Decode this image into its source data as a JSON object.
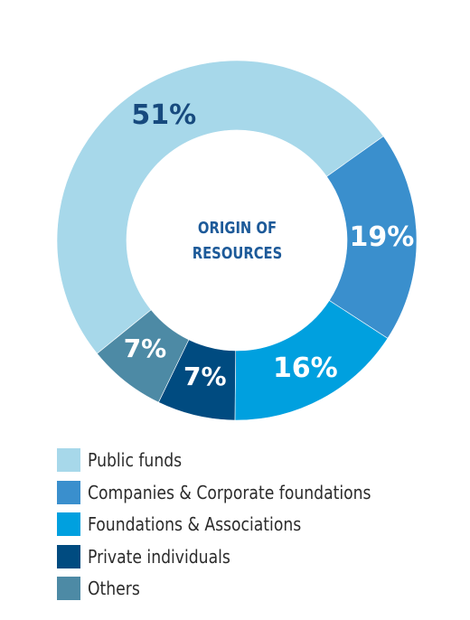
{
  "chart_data": {
    "type": "pie",
    "title": [
      "ORIGIN OF",
      "RESOURCES"
    ],
    "categories": [
      "Public funds",
      "Companies & Corporate foundations",
      "Foundations & Associations",
      "Private individuals",
      "Others"
    ],
    "values": [
      51,
      19,
      16,
      7,
      7
    ],
    "value_labels": [
      "51%",
      "19%",
      "16%",
      "7%",
      "7%"
    ],
    "colors": [
      "#a7d8ea",
      "#3a8fcd",
      "#00a0df",
      "#004b80",
      "#4d8aa5"
    ],
    "label_colors": [
      "#174a7e",
      "#ffffff",
      "#ffffff",
      "#ffffff",
      "#ffffff"
    ],
    "legend_position": "bottom-left",
    "donut": true
  },
  "legend": {
    "items": [
      {
        "label": "Public funds",
        "color": "#a7d8ea"
      },
      {
        "label": "Companies & Corporate foundations",
        "color": "#3a8fcd"
      },
      {
        "label": "Foundations & Associations",
        "color": "#00a0df"
      },
      {
        "label": "Private individuals",
        "color": "#004b80"
      },
      {
        "label": "Others",
        "color": "#4d8aa5"
      }
    ]
  }
}
